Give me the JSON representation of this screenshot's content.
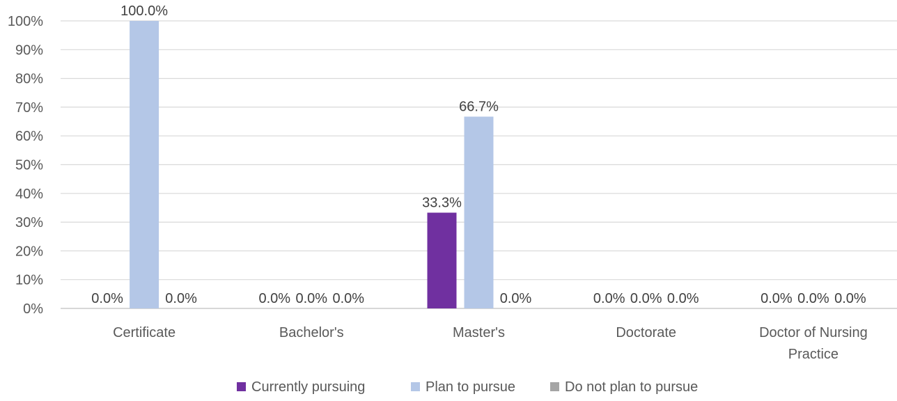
{
  "chart_data": {
    "type": "bar",
    "categories": [
      [
        "Certificate"
      ],
      [
        "Bachelor's"
      ],
      [
        "Master's"
      ],
      [
        "Doctorate"
      ],
      [
        "Doctor of Nursing",
        "Practice"
      ]
    ],
    "series": [
      {
        "name": "Currently pursuing",
        "color": "#7030A0",
        "values": [
          0.0,
          0.0,
          33.3,
          0.0,
          0.0
        ],
        "labels": [
          "0.0%",
          "0.0%",
          "33.3%",
          "0.0%",
          "0.0%"
        ]
      },
      {
        "name": "Plan to pursue",
        "color": "#B4C7E7",
        "values": [
          100.0,
          0.0,
          66.7,
          0.0,
          0.0
        ],
        "labels": [
          "100.0%",
          "0.0%",
          "66.7%",
          "0.0%",
          "0.0%"
        ]
      },
      {
        "name": "Do not plan to pursue",
        "color": "#A5A5A5",
        "values": [
          0.0,
          0.0,
          0.0,
          0.0,
          0.0
        ],
        "labels": [
          "0.0%",
          "0.0%",
          "0.0%",
          "0.0%",
          "0.0%"
        ]
      }
    ],
    "y_ticks": [
      "0%",
      "10%",
      "20%",
      "30%",
      "40%",
      "50%",
      "60%",
      "70%",
      "80%",
      "90%",
      "100%"
    ],
    "ylim": [
      0,
      100
    ],
    "grid": true,
    "legend_position": "bottom",
    "title": "",
    "xlabel": "",
    "ylabel": ""
  }
}
